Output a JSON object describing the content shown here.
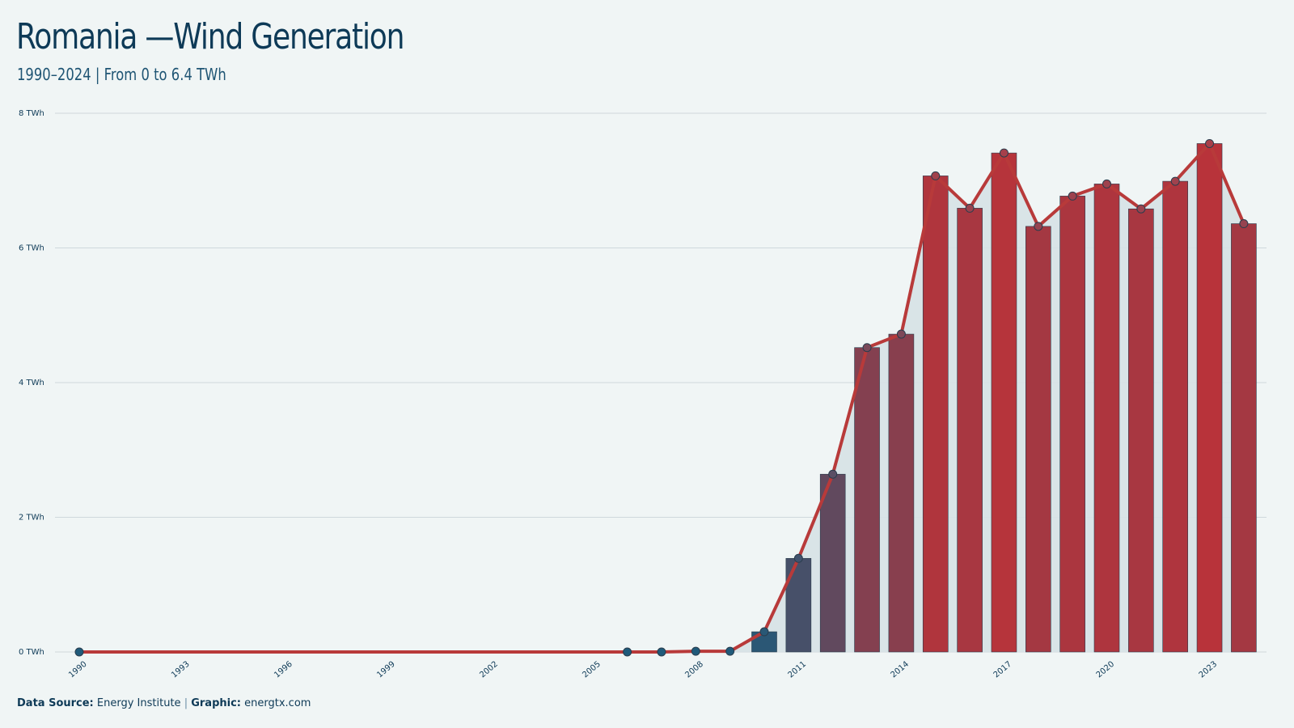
{
  "header": {
    "title": "Romania —Wind Generation",
    "subtitle": "1990–2024 | From 0 to 6.4 TWh"
  },
  "footer": {
    "source_label": "Data Source:",
    "source_value": "Energy Institute",
    "separator": "|",
    "graphic_label": "Graphic:",
    "graphic_value": "energtx.com"
  },
  "colors": {
    "background": "#f0f5f5",
    "line": "#b83a3a",
    "area": "#d6e2e6",
    "grid": "#cfd8dc",
    "low": "#1f5a7a",
    "high": "#b8333a"
  },
  "chart_data": {
    "type": "bar",
    "unit": "TWh",
    "x": [
      1990,
      1991,
      1992,
      1993,
      1994,
      1995,
      1996,
      1997,
      1998,
      1999,
      2000,
      2001,
      2002,
      2003,
      2004,
      2005,
      2006,
      2007,
      2008,
      2009,
      2010,
      2011,
      2012,
      2013,
      2014,
      2015,
      2016,
      2017,
      2018,
      2019,
      2020,
      2021,
      2022,
      2023,
      2024
    ],
    "values": [
      0,
      null,
      null,
      null,
      null,
      null,
      null,
      null,
      null,
      null,
      null,
      null,
      null,
      null,
      null,
      null,
      0,
      0,
      0.01,
      0.01,
      0.3,
      1.39,
      2.64,
      4.52,
      4.72,
      7.07,
      6.59,
      7.41,
      6.32,
      6.77,
      6.95,
      6.58,
      6.99,
      7.55,
      6.36
    ],
    "x_tick_labels": [
      "1990",
      "1993",
      "1996",
      "1999",
      "2002",
      "2005",
      "2008",
      "2011",
      "2014",
      "2017",
      "2020",
      "2023"
    ],
    "y_ticks": [
      0,
      2,
      4,
      6,
      8
    ],
    "y_tick_labels": [
      "0 TWh",
      "2 TWh",
      "4 TWh",
      "6 TWh",
      "8 TWh"
    ],
    "ylim": [
      0,
      8
    ],
    "grid": true,
    "overlay_line": true
  }
}
